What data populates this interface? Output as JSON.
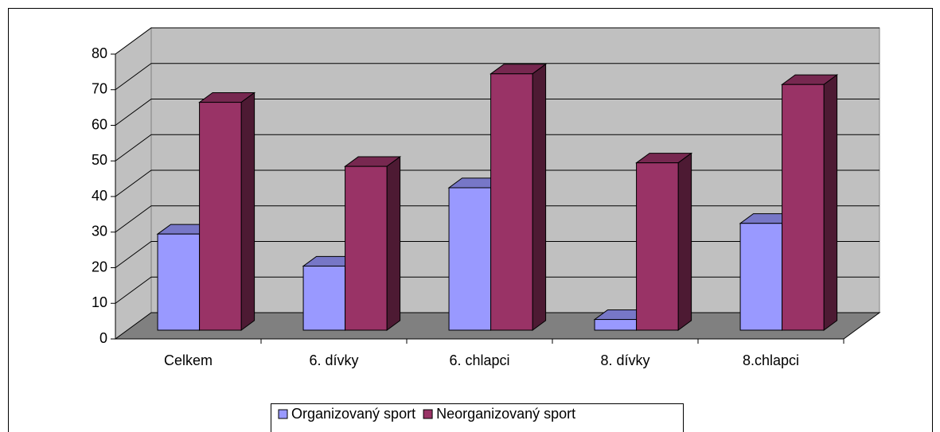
{
  "chart_data": {
    "type": "bar3d",
    "categories": [
      "Celkem",
      "6. dívky",
      "6. chlapci",
      "8. dívky",
      "8.chlapci"
    ],
    "series": [
      {
        "name": "Organizovaný sport",
        "color": "#9999ff",
        "values": [
          27,
          18,
          40,
          3,
          30
        ]
      },
      {
        "name": "Neorganizovaný sport",
        "color": "#993366",
        "values": [
          64,
          46,
          72,
          47,
          69
        ]
      }
    ],
    "ylim": [
      0,
      80
    ],
    "yticks": [
      0,
      10,
      20,
      30,
      40,
      50,
      60,
      70,
      80
    ],
    "grid": true,
    "legend": "bottom"
  }
}
